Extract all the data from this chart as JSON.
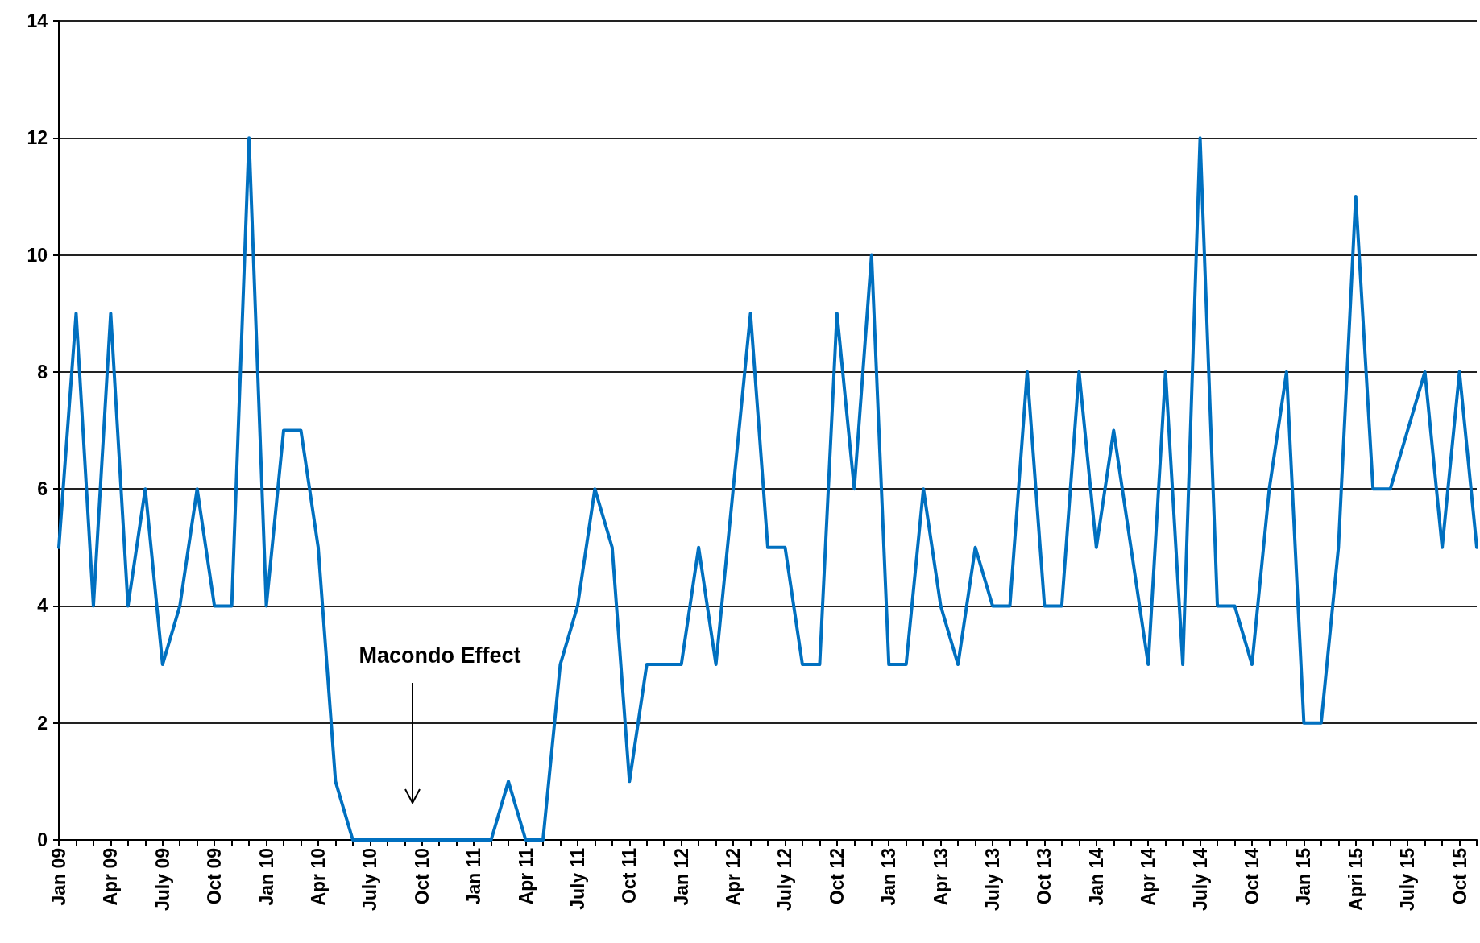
{
  "chart_data": {
    "type": "line",
    "categories": [
      "Jan 09",
      null,
      null,
      "Apr 09",
      null,
      null,
      "July 09",
      null,
      null,
      "Oct 09",
      null,
      null,
      "Jan 10",
      null,
      null,
      "Apr 10",
      null,
      null,
      "July 10",
      null,
      null,
      "Oct 10",
      null,
      null,
      "Jan 11",
      null,
      null,
      "Apr 11",
      null,
      null,
      "July 11",
      null,
      null,
      "Oct 11",
      null,
      null,
      "Jan 12",
      null,
      null,
      "Apr 12",
      null,
      null,
      "July 12",
      null,
      null,
      "Oct 12",
      null,
      null,
      "Jan 13",
      null,
      null,
      "Apr 13",
      null,
      null,
      "July 13",
      null,
      null,
      "Oct 13",
      null,
      null,
      "Jan 14",
      null,
      null,
      "Apr 14",
      null,
      null,
      "July 14",
      null,
      null,
      "Oct 14",
      null,
      null,
      "Jan 15",
      null,
      null,
      "Apri 15",
      null,
      null,
      "July 15",
      null,
      null,
      "Oct 15",
      null
    ],
    "series": [
      {
        "color": "#0070c0",
        "values": [
          5,
          9,
          4,
          9,
          4,
          6,
          3,
          4,
          6,
          4,
          4,
          12,
          4,
          7,
          7,
          5,
          1,
          0,
          0,
          0,
          0,
          0,
          0,
          0,
          0,
          0,
          1,
          0,
          0,
          3,
          4,
          6,
          5,
          1,
          3,
          3,
          3,
          5,
          3,
          6,
          9,
          5,
          5,
          3,
          3,
          9,
          6,
          10,
          3,
          3,
          6,
          4,
          3,
          5,
          4,
          4,
          8,
          4,
          4,
          8,
          5,
          7,
          5,
          3,
          8,
          3,
          12,
          4,
          4,
          3,
          6,
          8,
          2,
          2,
          5,
          11,
          6,
          6,
          7,
          8,
          5,
          8,
          5
        ]
      }
    ],
    "ylim": [
      0,
      14
    ],
    "yticks": [
      0,
      2,
      4,
      6,
      8,
      10,
      12,
      14
    ],
    "grid": "y",
    "marker": "none",
    "line_style": "solid",
    "annotations": [
      "Macondo Effect"
    ]
  }
}
